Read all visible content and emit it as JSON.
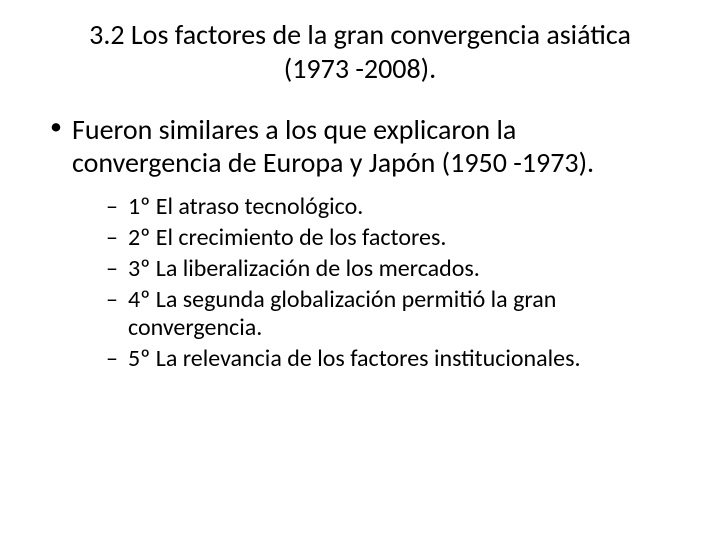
{
  "title_line1": "3.2  Los factores de la gran convergencia asiática",
  "title_line2": "(1973 -2008).",
  "main_bullet": "Fueron similares a los que explicaron la convergencia de Europa y Japón (1950 -1973).",
  "sub_bullets": [
    "1º El atraso tecnológico.",
    "2º El crecimiento de los factores.",
    "3º La liberalización de los mercados.",
    "4º La segunda globalización permitió la gran convergencia.",
    "5º La relevancia de los factores institucionales."
  ],
  "style": {
    "background_color": "#ffffff",
    "text_color": "#000000",
    "title_fontsize": 28,
    "bullet_l1_fontsize": 28,
    "bullet_l2_fontsize": 24,
    "font_family": "Calibri"
  }
}
